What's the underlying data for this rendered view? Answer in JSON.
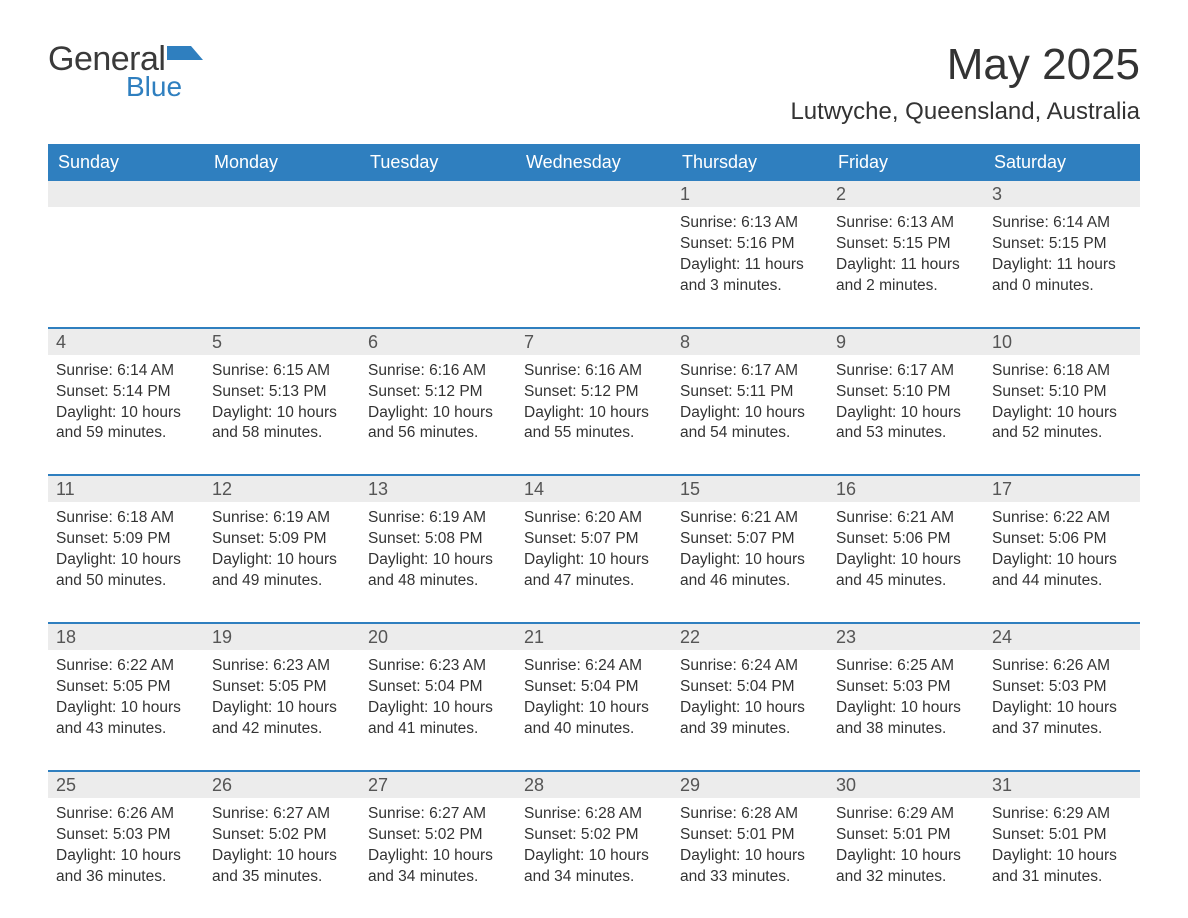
{
  "logo": {
    "general": "General",
    "blue": "Blue",
    "flag_color": "#2f7fbf"
  },
  "title": "May 2025",
  "location": "Lutwyche, Queensland, Australia",
  "colors": {
    "header_bg": "#2f7fbf",
    "header_text": "#ffffff",
    "row_separator": "#2f7fbf",
    "daynum_bg": "#ececec",
    "daynum_text": "#555555",
    "body_text": "#333333",
    "background": "#ffffff"
  },
  "fonts": {
    "title_size": 44,
    "location_size": 24,
    "weekday_size": 18,
    "daynum_size": 18,
    "body_size": 15.5
  },
  "weekdays": [
    "Sunday",
    "Monday",
    "Tuesday",
    "Wednesday",
    "Thursday",
    "Friday",
    "Saturday"
  ],
  "weeks": [
    [
      {
        "empty": true
      },
      {
        "empty": true
      },
      {
        "empty": true
      },
      {
        "empty": true
      },
      {
        "day": "1",
        "sunrise": "6:13 AM",
        "sunset": "5:16 PM",
        "daylight": "11 hours and 3 minutes."
      },
      {
        "day": "2",
        "sunrise": "6:13 AM",
        "sunset": "5:15 PM",
        "daylight": "11 hours and 2 minutes."
      },
      {
        "day": "3",
        "sunrise": "6:14 AM",
        "sunset": "5:15 PM",
        "daylight": "11 hours and 0 minutes."
      }
    ],
    [
      {
        "day": "4",
        "sunrise": "6:14 AM",
        "sunset": "5:14 PM",
        "daylight": "10 hours and 59 minutes."
      },
      {
        "day": "5",
        "sunrise": "6:15 AM",
        "sunset": "5:13 PM",
        "daylight": "10 hours and 58 minutes."
      },
      {
        "day": "6",
        "sunrise": "6:16 AM",
        "sunset": "5:12 PM",
        "daylight": "10 hours and 56 minutes."
      },
      {
        "day": "7",
        "sunrise": "6:16 AM",
        "sunset": "5:12 PM",
        "daylight": "10 hours and 55 minutes."
      },
      {
        "day": "8",
        "sunrise": "6:17 AM",
        "sunset": "5:11 PM",
        "daylight": "10 hours and 54 minutes."
      },
      {
        "day": "9",
        "sunrise": "6:17 AM",
        "sunset": "5:10 PM",
        "daylight": "10 hours and 53 minutes."
      },
      {
        "day": "10",
        "sunrise": "6:18 AM",
        "sunset": "5:10 PM",
        "daylight": "10 hours and 52 minutes."
      }
    ],
    [
      {
        "day": "11",
        "sunrise": "6:18 AM",
        "sunset": "5:09 PM",
        "daylight": "10 hours and 50 minutes."
      },
      {
        "day": "12",
        "sunrise": "6:19 AM",
        "sunset": "5:09 PM",
        "daylight": "10 hours and 49 minutes."
      },
      {
        "day": "13",
        "sunrise": "6:19 AM",
        "sunset": "5:08 PM",
        "daylight": "10 hours and 48 minutes."
      },
      {
        "day": "14",
        "sunrise": "6:20 AM",
        "sunset": "5:07 PM",
        "daylight": "10 hours and 47 minutes."
      },
      {
        "day": "15",
        "sunrise": "6:21 AM",
        "sunset": "5:07 PM",
        "daylight": "10 hours and 46 minutes."
      },
      {
        "day": "16",
        "sunrise": "6:21 AM",
        "sunset": "5:06 PM",
        "daylight": "10 hours and 45 minutes."
      },
      {
        "day": "17",
        "sunrise": "6:22 AM",
        "sunset": "5:06 PM",
        "daylight": "10 hours and 44 minutes."
      }
    ],
    [
      {
        "day": "18",
        "sunrise": "6:22 AM",
        "sunset": "5:05 PM",
        "daylight": "10 hours and 43 minutes."
      },
      {
        "day": "19",
        "sunrise": "6:23 AM",
        "sunset": "5:05 PM",
        "daylight": "10 hours and 42 minutes."
      },
      {
        "day": "20",
        "sunrise": "6:23 AM",
        "sunset": "5:04 PM",
        "daylight": "10 hours and 41 minutes."
      },
      {
        "day": "21",
        "sunrise": "6:24 AM",
        "sunset": "5:04 PM",
        "daylight": "10 hours and 40 minutes."
      },
      {
        "day": "22",
        "sunrise": "6:24 AM",
        "sunset": "5:04 PM",
        "daylight": "10 hours and 39 minutes."
      },
      {
        "day": "23",
        "sunrise": "6:25 AM",
        "sunset": "5:03 PM",
        "daylight": "10 hours and 38 minutes."
      },
      {
        "day": "24",
        "sunrise": "6:26 AM",
        "sunset": "5:03 PM",
        "daylight": "10 hours and 37 minutes."
      }
    ],
    [
      {
        "day": "25",
        "sunrise": "6:26 AM",
        "sunset": "5:03 PM",
        "daylight": "10 hours and 36 minutes."
      },
      {
        "day": "26",
        "sunrise": "6:27 AM",
        "sunset": "5:02 PM",
        "daylight": "10 hours and 35 minutes."
      },
      {
        "day": "27",
        "sunrise": "6:27 AM",
        "sunset": "5:02 PM",
        "daylight": "10 hours and 34 minutes."
      },
      {
        "day": "28",
        "sunrise": "6:28 AM",
        "sunset": "5:02 PM",
        "daylight": "10 hours and 34 minutes."
      },
      {
        "day": "29",
        "sunrise": "6:28 AM",
        "sunset": "5:01 PM",
        "daylight": "10 hours and 33 minutes."
      },
      {
        "day": "30",
        "sunrise": "6:29 AM",
        "sunset": "5:01 PM",
        "daylight": "10 hours and 32 minutes."
      },
      {
        "day": "31",
        "sunrise": "6:29 AM",
        "sunset": "5:01 PM",
        "daylight": "10 hours and 31 minutes."
      }
    ]
  ],
  "labels": {
    "sunrise": "Sunrise: ",
    "sunset": "Sunset: ",
    "daylight": "Daylight: "
  }
}
